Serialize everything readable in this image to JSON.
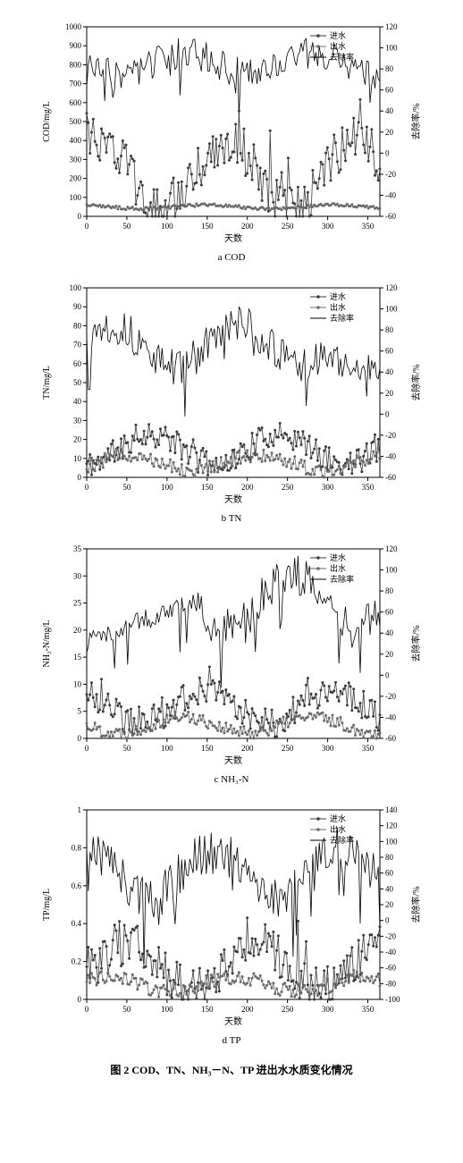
{
  "caption": "图 2   COD、TN、NH₃－N、TP 进出水水质变化情况",
  "legend_labels": {
    "inflow": "进水",
    "outflow": "出水",
    "removal": "去除率"
  },
  "common": {
    "xlabel": "天数",
    "xlim": [
      0,
      365
    ],
    "xtick_step": 50,
    "y2label": "去除率/%",
    "background": "#ffffff",
    "axis_color": "#000000",
    "inflow_color": "#3a3a3a",
    "outflow_color": "#6a6a6a",
    "removal_color": "#000000",
    "marker_size": 1.5,
    "line_width": 0.8,
    "tick_fontsize": 9,
    "label_fontsize": 10
  },
  "panels": [
    {
      "id": "cod",
      "subcaption": "a COD",
      "ylabel": "COD/mg/L",
      "ylim": [
        0,
        1000
      ],
      "ytick_step": 100,
      "y2lim": [
        -60,
        120
      ],
      "y2tick_step": 20,
      "inflow_base": 220,
      "inflow_amp": 180,
      "inflow_noise": 120,
      "outflow_base": 50,
      "outflow_amp": 10,
      "outflow_noise": 8,
      "removal_base": 85,
      "removal_amp": 10,
      "removal_noise": 15
    },
    {
      "id": "tn",
      "subcaption": "b TN",
      "ylabel": "TN/mg/L",
      "ylim": [
        0,
        100
      ],
      "ytick_step": 10,
      "y2lim": [
        -60,
        120
      ],
      "y2tick_step": 20,
      "inflow_base": 15,
      "inflow_amp": 8,
      "inflow_noise": 7,
      "outflow_base": 8,
      "outflow_amp": 4,
      "outflow_noise": 4,
      "removal_base": 65,
      "removal_amp": 20,
      "removal_noise": 18
    },
    {
      "id": "nh3",
      "subcaption": "c NH₃-N",
      "ylabel": "NH₃-N/mg/L",
      "ylim": [
        0,
        35
      ],
      "ytick_step": 5,
      "y2lim": [
        -60,
        120
      ],
      "y2tick_step": 20,
      "inflow_base": 6,
      "inflow_amp": 3,
      "inflow_noise": 3,
      "outflow_base": 2.5,
      "outflow_amp": 1.5,
      "outflow_noise": 1.2,
      "removal_base": 70,
      "removal_amp": 25,
      "removal_noise": 20
    },
    {
      "id": "tp",
      "subcaption": "d TP",
      "ylabel": "TP/mg/L",
      "ylim": [
        0,
        1.0
      ],
      "ytick_step": 0.2,
      "y2lim": [
        -100,
        140
      ],
      "y2tick_step": 20,
      "inflow_base": 0.18,
      "inflow_amp": 0.12,
      "inflow_noise": 0.12,
      "outflow_base": 0.08,
      "outflow_amp": 0.04,
      "outflow_noise": 0.04,
      "removal_base": 60,
      "removal_amp": 30,
      "removal_noise": 30
    }
  ]
}
